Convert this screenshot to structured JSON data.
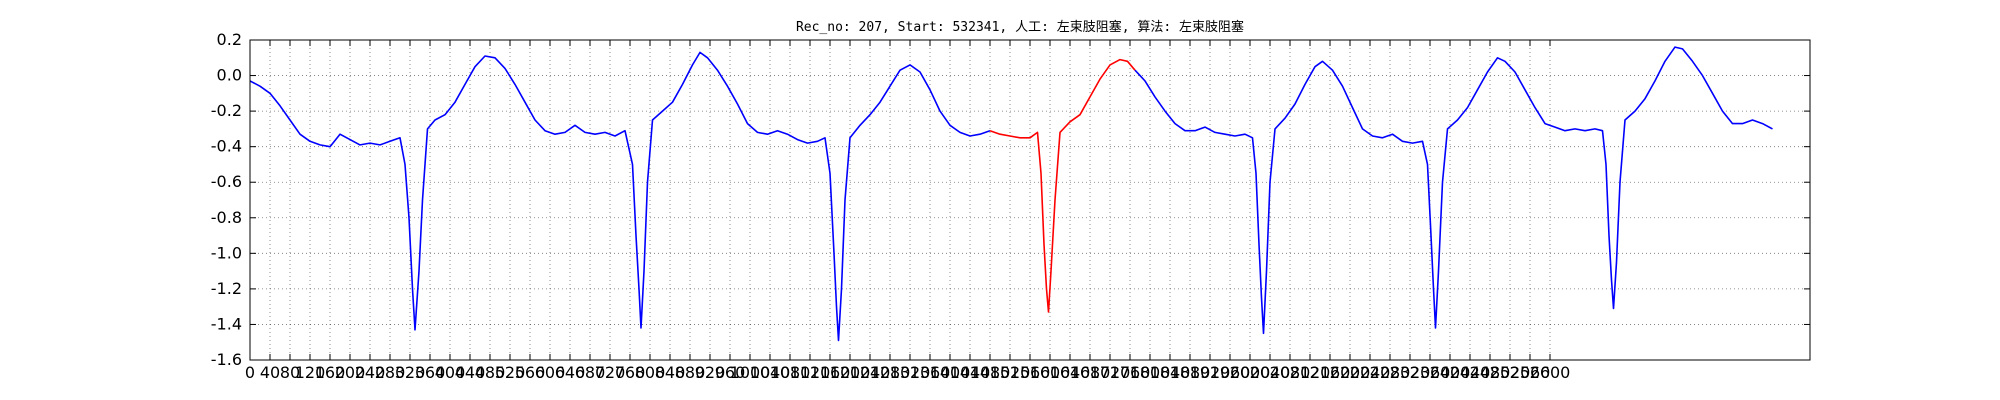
{
  "chart_data": {
    "type": "line",
    "title": "Rec_no: 207, Start: 532341, 人工: 左束肢阻塞, 算法: 左束肢阻塞",
    "xlabel": "",
    "ylabel": "",
    "ylim": [
      -1.6,
      0.2
    ],
    "xlim": [
      0,
      3120
    ],
    "grid": true,
    "yticks": [
      "0.2",
      "0.0",
      "-0.2",
      "-0.4",
      "-0.6",
      "-0.8",
      "-1.0",
      "-1.2",
      "-1.4",
      "-1.6"
    ],
    "xticks": [
      "0",
      "40",
      "80",
      "120",
      "160",
      "200",
      "240",
      "280",
      "320",
      "360",
      "400",
      "440",
      "480",
      "520",
      "560",
      "600",
      "640",
      "680",
      "720",
      "760",
      "800",
      "840",
      "880",
      "920",
      "960",
      "1000",
      "1040",
      "1080",
      "1120",
      "1160",
      "1200",
      "1240",
      "1280",
      "1320",
      "1360",
      "1400",
      "1440",
      "1480",
      "1520",
      "1560",
      "1600",
      "1640",
      "1680",
      "1720",
      "1760",
      "1800",
      "1840",
      "1880",
      "1920",
      "1960",
      "2000",
      "2040",
      "2080",
      "2120",
      "2160",
      "2200",
      "2240",
      "2280",
      "2320",
      "2360",
      "2400",
      "2440",
      "2480",
      "2520",
      "2560",
      "2600"
    ],
    "series": [
      {
        "color": "#0000ff",
        "points": [
          [
            0,
            -0.03
          ],
          [
            20,
            -0.06
          ],
          [
            40,
            -0.1
          ],
          [
            60,
            -0.17
          ],
          [
            80,
            -0.25
          ],
          [
            100,
            -0.33
          ],
          [
            120,
            -0.37
          ],
          [
            140,
            -0.39
          ],
          [
            160,
            -0.4
          ],
          [
            180,
            -0.33
          ],
          [
            200,
            -0.36
          ],
          [
            220,
            -0.39
          ],
          [
            240,
            -0.38
          ],
          [
            260,
            -0.39
          ],
          [
            280,
            -0.37
          ],
          [
            300,
            -0.35
          ],
          [
            310,
            -0.5
          ],
          [
            318,
            -0.8
          ],
          [
            325,
            -1.2
          ],
          [
            330,
            -1.43
          ],
          [
            338,
            -1.1
          ],
          [
            345,
            -0.7
          ],
          [
            355,
            -0.3
          ],
          [
            370,
            -0.25
          ],
          [
            390,
            -0.22
          ],
          [
            410,
            -0.15
          ],
          [
            430,
            -0.05
          ],
          [
            450,
            0.05
          ],
          [
            470,
            0.11
          ],
          [
            490,
            0.1
          ],
          [
            510,
            0.04
          ],
          [
            530,
            -0.05
          ],
          [
            550,
            -0.15
          ],
          [
            570,
            -0.25
          ],
          [
            590,
            -0.31
          ],
          [
            610,
            -0.33
          ],
          [
            630,
            -0.32
          ],
          [
            650,
            -0.28
          ],
          [
            670,
            -0.32
          ],
          [
            690,
            -0.33
          ],
          [
            710,
            -0.32
          ],
          [
            730,
            -0.34
          ],
          [
            750,
            -0.31
          ],
          [
            765,
            -0.5
          ],
          [
            772,
            -0.9
          ],
          [
            778,
            -1.2
          ],
          [
            782,
            -1.42
          ],
          [
            788,
            -1.1
          ],
          [
            795,
            -0.6
          ],
          [
            805,
            -0.25
          ],
          [
            825,
            -0.2
          ],
          [
            845,
            -0.15
          ],
          [
            865,
            -0.05
          ],
          [
            885,
            0.06
          ],
          [
            900,
            0.13
          ],
          [
            915,
            0.1
          ],
          [
            935,
            0.03
          ],
          [
            955,
            -0.06
          ],
          [
            975,
            -0.16
          ],
          [
            995,
            -0.27
          ],
          [
            1015,
            -0.32
          ],
          [
            1035,
            -0.33
          ],
          [
            1055,
            -0.31
          ],
          [
            1075,
            -0.33
          ],
          [
            1095,
            -0.36
          ],
          [
            1115,
            -0.38
          ],
          [
            1135,
            -0.37
          ],
          [
            1150,
            -0.35
          ],
          [
            1160,
            -0.55
          ],
          [
            1168,
            -1.0
          ],
          [
            1173,
            -1.3
          ],
          [
            1177,
            -1.49
          ],
          [
            1183,
            -1.2
          ],
          [
            1190,
            -0.7
          ],
          [
            1200,
            -0.35
          ],
          [
            1220,
            -0.28
          ],
          [
            1240,
            -0.22
          ],
          [
            1260,
            -0.15
          ],
          [
            1280,
            -0.06
          ],
          [
            1300,
            0.03
          ],
          [
            1320,
            0.06
          ],
          [
            1340,
            0.02
          ],
          [
            1360,
            -0.08
          ],
          [
            1380,
            -0.2
          ],
          [
            1400,
            -0.28
          ],
          [
            1420,
            -0.32
          ],
          [
            1440,
            -0.34
          ],
          [
            1460,
            -0.33
          ],
          [
            1480,
            -0.31
          ]
        ]
      },
      {
        "color": "#ff0000",
        "points": [
          [
            1480,
            -0.31
          ],
          [
            1500,
            -0.33
          ],
          [
            1520,
            -0.34
          ],
          [
            1540,
            -0.35
          ],
          [
            1560,
            -0.35
          ],
          [
            1575,
            -0.32
          ],
          [
            1582,
            -0.55
          ],
          [
            1588,
            -0.95
          ],
          [
            1593,
            -1.2
          ],
          [
            1597,
            -1.33
          ],
          [
            1602,
            -1.1
          ],
          [
            1610,
            -0.7
          ],
          [
            1620,
            -0.32
          ],
          [
            1640,
            -0.26
          ],
          [
            1660,
            -0.22
          ],
          [
            1680,
            -0.12
          ],
          [
            1700,
            -0.02
          ],
          [
            1720,
            0.06
          ],
          [
            1740,
            0.09
          ],
          [
            1755,
            0.08
          ],
          [
            1770,
            0.03
          ]
        ]
      },
      {
        "color": "#0000ff",
        "points": [
          [
            1770,
            0.03
          ],
          [
            1790,
            -0.03
          ],
          [
            1810,
            -0.12
          ],
          [
            1830,
            -0.2
          ],
          [
            1850,
            -0.27
          ],
          [
            1870,
            -0.31
          ],
          [
            1890,
            -0.31
          ],
          [
            1910,
            -0.29
          ],
          [
            1930,
            -0.32
          ],
          [
            1950,
            -0.33
          ],
          [
            1970,
            -0.34
          ],
          [
            1990,
            -0.33
          ],
          [
            2005,
            -0.35
          ],
          [
            2012,
            -0.55
          ],
          [
            2018,
            -0.95
          ],
          [
            2023,
            -1.25
          ],
          [
            2027,
            -1.45
          ],
          [
            2033,
            -1.1
          ],
          [
            2040,
            -0.6
          ],
          [
            2050,
            -0.3
          ],
          [
            2070,
            -0.24
          ],
          [
            2090,
            -0.16
          ],
          [
            2110,
            -0.05
          ],
          [
            2130,
            0.05
          ],
          [
            2145,
            0.08
          ],
          [
            2165,
            0.03
          ],
          [
            2185,
            -0.06
          ],
          [
            2205,
            -0.18
          ],
          [
            2225,
            -0.3
          ],
          [
            2245,
            -0.34
          ],
          [
            2265,
            -0.35
          ],
          [
            2285,
            -0.33
          ],
          [
            2305,
            -0.37
          ],
          [
            2325,
            -0.38
          ],
          [
            2345,
            -0.37
          ],
          [
            2355,
            -0.5
          ],
          [
            2362,
            -0.9
          ],
          [
            2367,
            -1.2
          ],
          [
            2371,
            -1.42
          ],
          [
            2377,
            -1.1
          ],
          [
            2385,
            -0.6
          ],
          [
            2395,
            -0.3
          ],
          [
            2415,
            -0.25
          ],
          [
            2435,
            -0.18
          ],
          [
            2455,
            -0.08
          ],
          [
            2475,
            0.02
          ],
          [
            2495,
            0.1
          ],
          [
            2510,
            0.08
          ],
          [
            2530,
            0.02
          ],
          [
            2550,
            -0.08
          ],
          [
            2570,
            -0.18
          ],
          [
            2590,
            -0.27
          ],
          [
            2610,
            -0.29
          ],
          [
            2630,
            -0.31
          ],
          [
            2650,
            -0.3
          ],
          [
            2670,
            -0.31
          ],
          [
            2690,
            -0.3
          ],
          [
            2705,
            -0.31
          ],
          [
            2712,
            -0.5
          ],
          [
            2718,
            -0.9
          ],
          [
            2723,
            -1.15
          ],
          [
            2727,
            -1.31
          ],
          [
            2733,
            -1.05
          ],
          [
            2740,
            -0.6
          ],
          [
            2750,
            -0.25
          ],
          [
            2770,
            -0.2
          ],
          [
            2790,
            -0.13
          ],
          [
            2810,
            -0.03
          ],
          [
            2830,
            0.08
          ],
          [
            2850,
            0.16
          ],
          [
            2865,
            0.15
          ],
          [
            2885,
            0.08
          ],
          [
            2905,
            0.0
          ],
          [
            2925,
            -0.1
          ],
          [
            2945,
            -0.2
          ],
          [
            2965,
            -0.27
          ],
          [
            2985,
            -0.27
          ],
          [
            3005,
            -0.25
          ],
          [
            3025,
            -0.27
          ],
          [
            3045,
            -0.3
          ]
        ]
      }
    ]
  }
}
